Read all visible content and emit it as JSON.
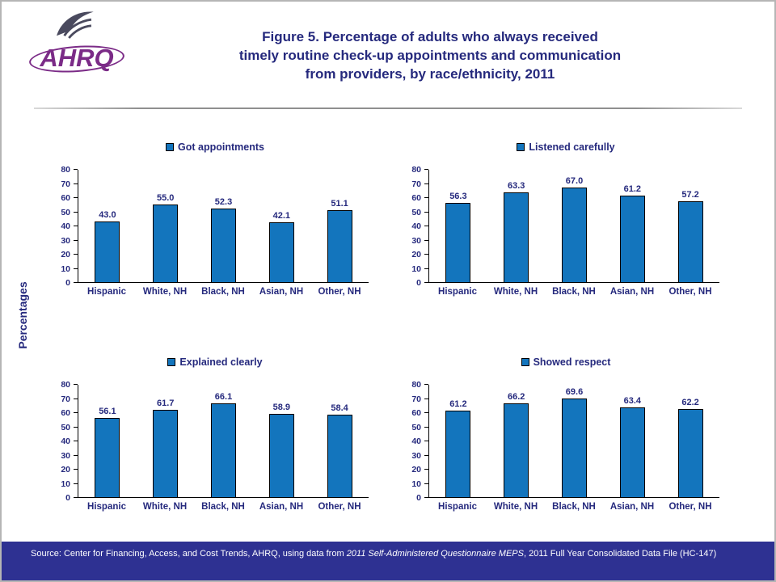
{
  "header": {
    "logo_text": "AHRQ",
    "title_lines": [
      "Figure 5. Percentage of adults who always received",
      "timely routine check-up appointments and communication",
      "from providers, by race/ethnicity, 2011"
    ]
  },
  "y_axis_label": "Percentages",
  "colors": {
    "title_navy": "#25297d",
    "bar_fill": "#1375bd",
    "footer_bg": "#2e3192",
    "logo_purple": "#7b2b87"
  },
  "footer": {
    "source_prefix": "Source: Center for Financing, Access, and Cost Trends, AHRQ, using data from ",
    "source_italic": "2011 Self-Administered Questionnaire MEPS",
    "source_suffix": ", 2011 Full Year Consolidated Data File (HC-147)"
  },
  "chart_data": [
    {
      "type": "bar",
      "title": "Got appointments",
      "categories": [
        "Hispanic",
        "White, NH",
        "Black, NH",
        "Asian, NH",
        "Other, NH"
      ],
      "values": [
        43.0,
        55.0,
        52.3,
        42.1,
        51.1
      ],
      "ylim": [
        0,
        80
      ],
      "yticks": [
        0,
        10,
        20,
        30,
        40,
        50,
        60,
        70,
        80
      ],
      "legend_position": "top",
      "grid": false
    },
    {
      "type": "bar",
      "title": "Listened carefully",
      "categories": [
        "Hispanic",
        "White, NH",
        "Black, NH",
        "Asian, NH",
        "Other, NH"
      ],
      "values": [
        56.3,
        63.3,
        67.0,
        61.2,
        57.2
      ],
      "ylim": [
        0,
        80
      ],
      "yticks": [
        0,
        10,
        20,
        30,
        40,
        50,
        60,
        70,
        80
      ],
      "legend_position": "top",
      "grid": false
    },
    {
      "type": "bar",
      "title": "Explained clearly",
      "categories": [
        "Hispanic",
        "White, NH",
        "Black, NH",
        "Asian, NH",
        "Other, NH"
      ],
      "values": [
        56.1,
        61.7,
        66.1,
        58.9,
        58.4
      ],
      "ylim": [
        0,
        80
      ],
      "yticks": [
        0,
        10,
        20,
        30,
        40,
        50,
        60,
        70,
        80
      ],
      "legend_position": "top",
      "grid": false
    },
    {
      "type": "bar",
      "title": "Showed respect",
      "categories": [
        "Hispanic",
        "White, NH",
        "Black, NH",
        "Asian, NH",
        "Other, NH"
      ],
      "values": [
        61.2,
        66.2,
        69.6,
        63.4,
        62.2
      ],
      "ylim": [
        0,
        80
      ],
      "yticks": [
        0,
        10,
        20,
        30,
        40,
        50,
        60,
        70,
        80
      ],
      "legend_position": "top",
      "grid": false
    }
  ]
}
